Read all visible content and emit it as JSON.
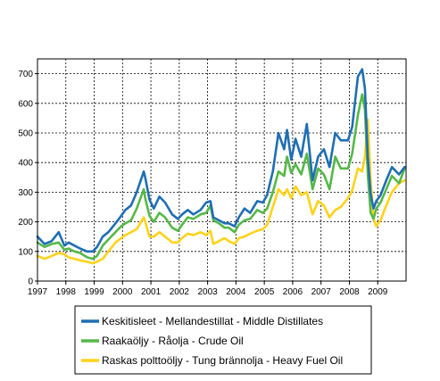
{
  "chart_data": {
    "type": "line",
    "title": "",
    "xlabel": "",
    "ylabel": "",
    "xlim": [
      1997.0,
      2010.0
    ],
    "ylim": [
      0,
      750
    ],
    "grid": true,
    "legend_position": "bottom",
    "x_ticks": [
      "1997",
      "1998",
      "1999",
      "2000",
      "2001",
      "2002",
      "2003",
      "2004",
      "2005",
      "2006",
      "2007",
      "2008",
      "2009"
    ],
    "y_ticks": [
      "0",
      "100",
      "200",
      "300",
      "400",
      "500",
      "600",
      "700"
    ],
    "series": [
      {
        "name": "Keskitisleet - Mellandestillat - Middle Distillates",
        "color": "#1f6eb4",
        "x": [
          1997.0,
          1997.25,
          1997.5,
          1997.75,
          1997.95,
          1998.1,
          1998.3,
          1998.5,
          1998.75,
          1998.95,
          1999.1,
          1999.3,
          1999.5,
          1999.75,
          1999.95,
          2000.1,
          2000.3,
          2000.5,
          2000.75,
          2000.8,
          2000.95,
          2001.1,
          2001.3,
          2001.5,
          2001.75,
          2001.95,
          2002.1,
          2002.3,
          2002.5,
          2002.75,
          2002.95,
          2003.1,
          2003.2,
          2003.4,
          2003.6,
          2003.75,
          2003.95,
          2004.1,
          2004.3,
          2004.5,
          2004.75,
          2004.95,
          2005.1,
          2005.3,
          2005.5,
          2005.7,
          2005.8,
          2005.95,
          2006.1,
          2006.3,
          2006.5,
          2006.7,
          2006.9,
          2007.1,
          2007.3,
          2007.5,
          2007.7,
          2007.95,
          2008.1,
          2008.3,
          2008.45,
          2008.55,
          2008.65,
          2008.75,
          2008.85,
          2008.95,
          2009.1,
          2009.3,
          2009.5,
          2009.75,
          2009.95
        ],
        "y": [
          150,
          125,
          135,
          165,
          120,
          130,
          120,
          110,
          100,
          100,
          115,
          150,
          165,
          195,
          220,
          240,
          255,
          300,
          370,
          350,
          275,
          245,
          285,
          265,
          225,
          210,
          225,
          240,
          225,
          240,
          265,
          270,
          215,
          205,
          195,
          195,
          185,
          215,
          245,
          230,
          270,
          265,
          290,
          370,
          500,
          445,
          510,
          410,
          480,
          420,
          530,
          340,
          420,
          445,
          385,
          500,
          475,
          475,
          520,
          690,
          715,
          650,
          420,
          295,
          245,
          270,
          290,
          340,
          385,
          360,
          385
        ]
      },
      {
        "name": "Raakaöljy - Råolja - Crude Oil",
        "color": "#55b848",
        "x": [
          1997.0,
          1997.25,
          1997.5,
          1997.75,
          1997.95,
          1998.1,
          1998.3,
          1998.5,
          1998.75,
          1998.95,
          1999.1,
          1999.3,
          1999.5,
          1999.75,
          1999.95,
          2000.1,
          2000.3,
          2000.5,
          2000.75,
          2000.8,
          2000.95,
          2001.1,
          2001.3,
          2001.5,
          2001.75,
          2001.95,
          2002.1,
          2002.3,
          2002.5,
          2002.75,
          2002.95,
          2003.1,
          2003.2,
          2003.4,
          2003.6,
          2003.75,
          2003.95,
          2004.1,
          2004.3,
          2004.5,
          2004.75,
          2004.95,
          2005.1,
          2005.3,
          2005.5,
          2005.7,
          2005.8,
          2005.95,
          2006.1,
          2006.3,
          2006.5,
          2006.7,
          2006.9,
          2007.1,
          2007.3,
          2007.5,
          2007.7,
          2007.95,
          2008.1,
          2008.3,
          2008.45,
          2008.55,
          2008.65,
          2008.75,
          2008.85,
          2008.95,
          2009.1,
          2009.3,
          2009.5,
          2009.75,
          2009.95
        ],
        "y": [
          130,
          115,
          125,
          130,
          105,
          110,
          100,
          95,
          80,
          75,
          85,
          120,
          140,
          165,
          185,
          195,
          205,
          245,
          310,
          280,
          220,
          200,
          230,
          215,
          180,
          170,
          190,
          215,
          210,
          225,
          230,
          255,
          205,
          195,
          180,
          180,
          165,
          190,
          205,
          210,
          240,
          230,
          245,
          300,
          370,
          355,
          420,
          365,
          395,
          360,
          430,
          310,
          380,
          360,
          310,
          420,
          380,
          380,
          430,
          560,
          630,
          580,
          360,
          230,
          210,
          245,
          265,
          310,
          355,
          330,
          380
        ]
      },
      {
        "name": "Raskas polttoöljy - Tung brännolja - Heavy Fuel Oil",
        "color": "#ffd21a",
        "x": [
          1997.0,
          1997.25,
          1997.5,
          1997.75,
          1997.95,
          1998.1,
          1998.3,
          1998.5,
          1998.75,
          1998.95,
          1999.1,
          1999.3,
          1999.5,
          1999.75,
          1999.95,
          2000.1,
          2000.3,
          2000.5,
          2000.75,
          2000.8,
          2000.95,
          2001.1,
          2001.3,
          2001.5,
          2001.75,
          2001.95,
          2002.1,
          2002.3,
          2002.5,
          2002.75,
          2002.95,
          2003.1,
          2003.2,
          2003.4,
          2003.6,
          2003.75,
          2003.95,
          2004.1,
          2004.3,
          2004.5,
          2004.75,
          2004.95,
          2005.1,
          2005.3,
          2005.5,
          2005.7,
          2005.8,
          2005.95,
          2006.1,
          2006.3,
          2006.5,
          2006.7,
          2006.9,
          2007.1,
          2007.3,
          2007.5,
          2007.7,
          2007.95,
          2008.1,
          2008.3,
          2008.45,
          2008.55,
          2008.65,
          2008.75,
          2008.85,
          2008.95,
          2009.1,
          2009.3,
          2009.5,
          2009.75,
          2009.95
        ],
        "y": [
          85,
          75,
          85,
          95,
          90,
          80,
          75,
          70,
          65,
          60,
          65,
          75,
          100,
          130,
          145,
          155,
          165,
          175,
          215,
          200,
          150,
          150,
          165,
          150,
          130,
          130,
          145,
          160,
          155,
          165,
          155,
          170,
          125,
          135,
          145,
          135,
          125,
          145,
          150,
          160,
          170,
          175,
          190,
          250,
          310,
          290,
          310,
          280,
          320,
          290,
          300,
          225,
          270,
          255,
          215,
          240,
          250,
          280,
          305,
          380,
          370,
          420,
          545,
          340,
          210,
          185,
          205,
          255,
          300,
          330,
          340
        ]
      }
    ]
  }
}
